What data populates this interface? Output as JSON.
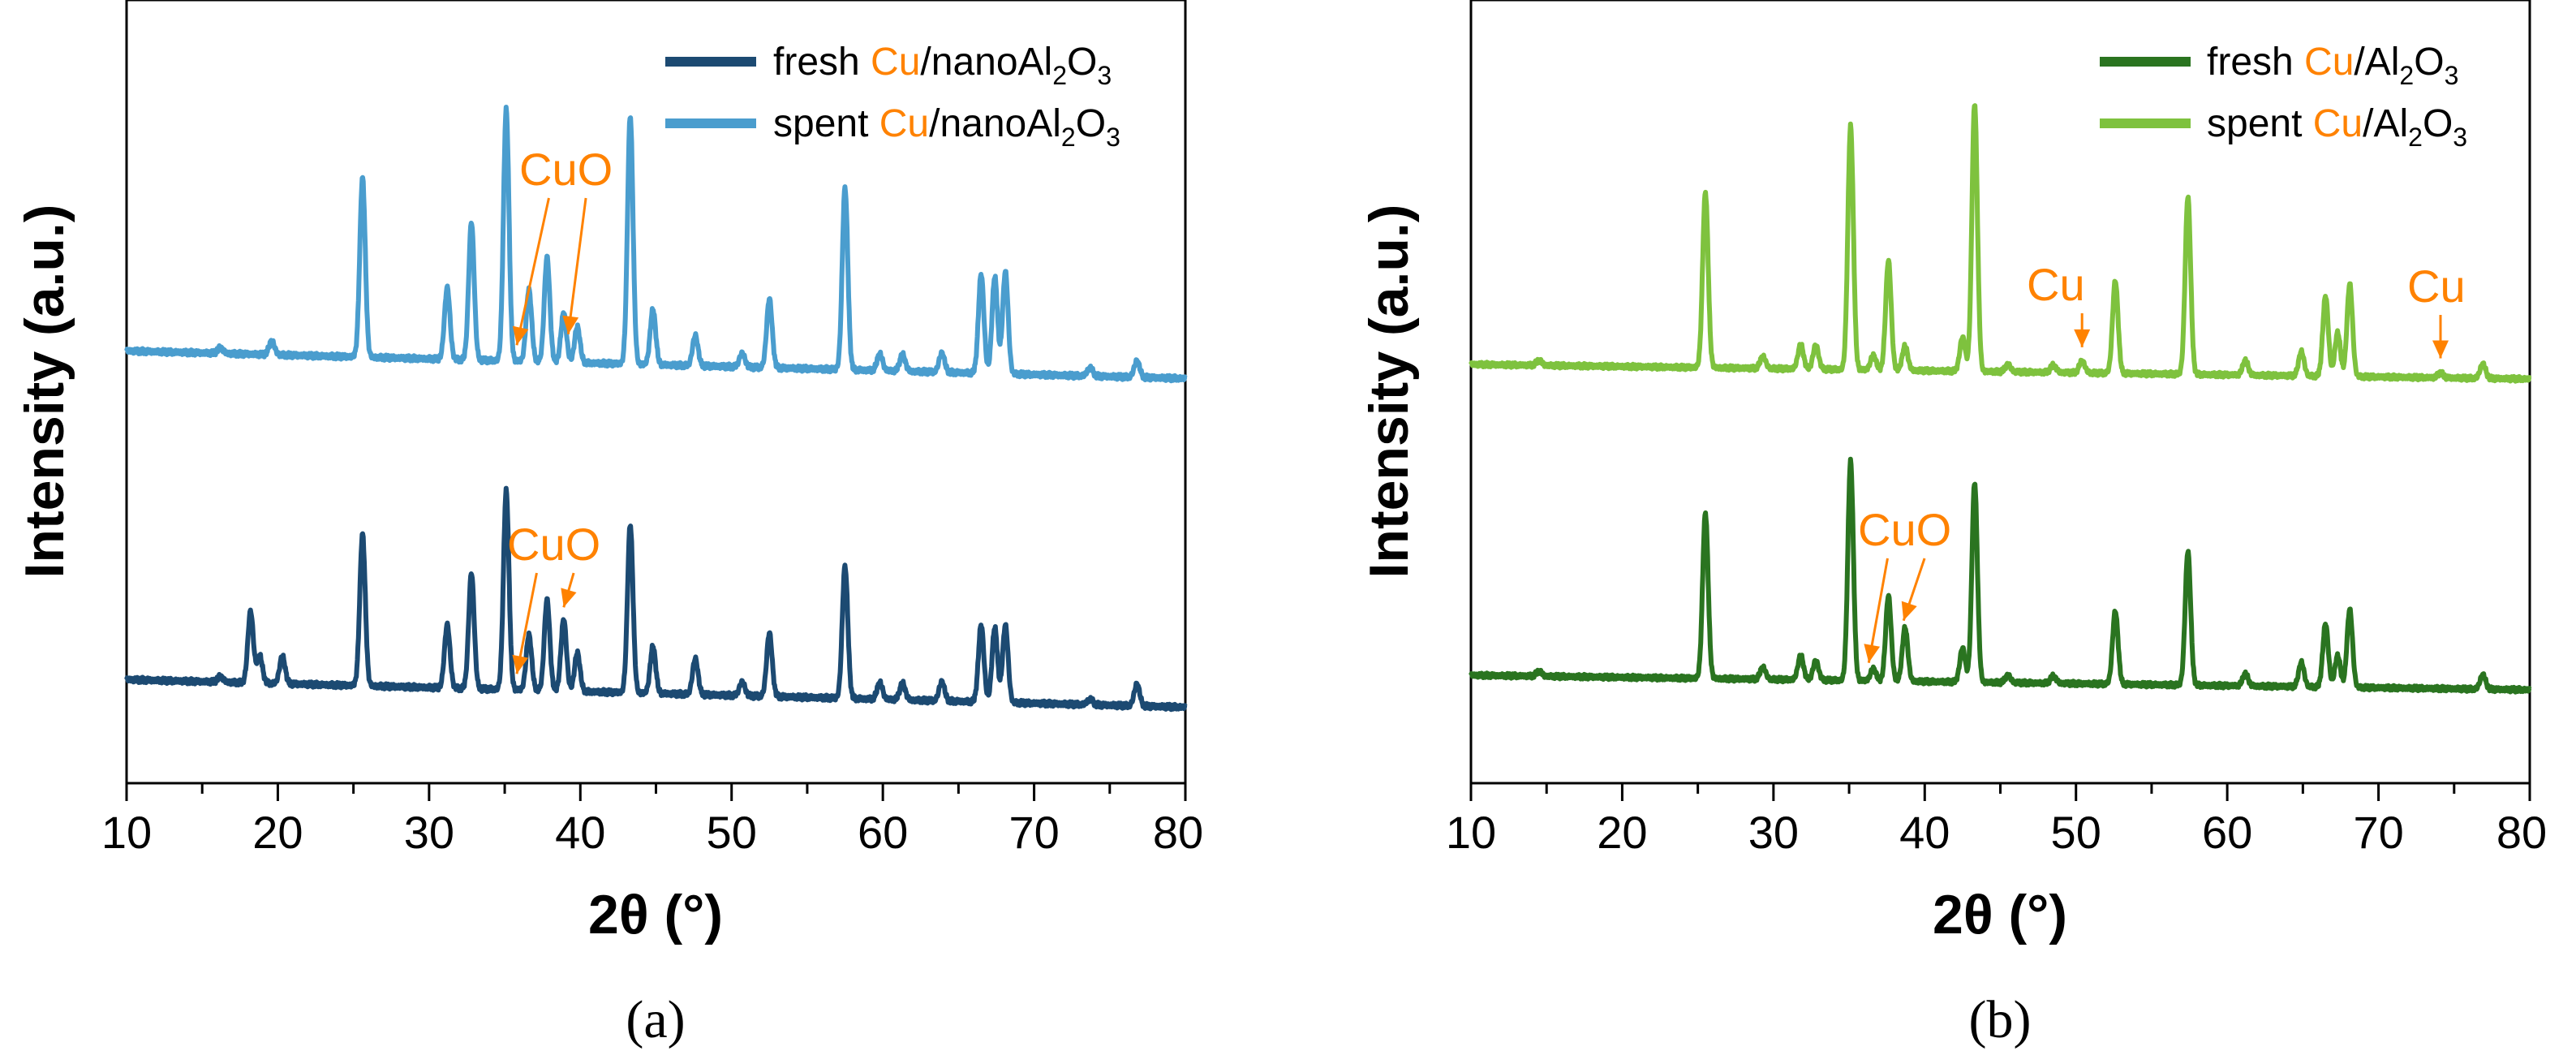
{
  "colors": {
    "a_fresh": "#1c4a72",
    "a_spent": "#4a9dce",
    "b_fresh": "#2a7420",
    "b_spent": "#7ec23e",
    "cu_highlight": "#ff8200",
    "annotation": "#ff8200"
  },
  "chart_data": [
    {
      "panel": "(a)",
      "type": "line",
      "title": "",
      "xlabel": "2θ (°)",
      "ylabel": "Intensity (a.u.)",
      "xlim": [
        10,
        80
      ],
      "xticks": [
        "10",
        "20",
        "30",
        "40",
        "50",
        "60",
        "70",
        "80"
      ],
      "y_ticks_shown": false,
      "legend_position": "top-right",
      "series": [
        {
          "name": "fresh Cu/nanoAl2O3",
          "legend": {
            "prefix": "fresh ",
            "cu": "Cu",
            "suffix": "/nanoAl",
            "sub1": "2",
            "mid": "O",
            "sub2": "3"
          },
          "color_key": "a_fresh",
          "baseline_start": 0.14,
          "baseline_end": 0.04,
          "offset": 0.0,
          "peaks": [
            [
              16.2,
              0.02
            ],
            [
              18.2,
              0.26
            ],
            [
              18.8,
              0.1
            ],
            [
              20.3,
              0.1
            ],
            [
              25.6,
              0.55
            ],
            [
              31.2,
              0.23
            ],
            [
              32.8,
              0.42
            ],
            [
              35.1,
              0.72
            ],
            [
              36.6,
              0.2
            ],
            [
              37.8,
              0.33
            ],
            [
              38.9,
              0.26
            ],
            [
              39.8,
              0.14
            ],
            [
              43.3,
              0.61
            ],
            [
              44.8,
              0.17
            ],
            [
              47.6,
              0.13
            ],
            [
              50.7,
              0.05
            ],
            [
              52.5,
              0.23
            ],
            [
              57.5,
              0.48
            ],
            [
              59.8,
              0.06
            ],
            [
              61.3,
              0.06
            ],
            [
              63.9,
              0.07
            ],
            [
              66.5,
              0.28
            ],
            [
              67.4,
              0.27
            ],
            [
              68.1,
              0.28
            ],
            [
              73.7,
              0.02
            ],
            [
              76.8,
              0.08
            ]
          ]
        },
        {
          "name": "spent Cu/nanoAl2O3",
          "legend": {
            "prefix": "spent ",
            "cu": "Cu",
            "suffix": "/nanoAl",
            "sub1": "2",
            "mid": "O",
            "sub2": "3"
          },
          "color_key": "a_spent",
          "baseline_start": 0.14,
          "baseline_end": 0.04,
          "offset": 1.0,
          "peaks": [
            [
              16.2,
              0.02
            ],
            [
              19.6,
              0.05
            ],
            [
              25.6,
              0.65
            ],
            [
              31.2,
              0.26
            ],
            [
              32.8,
              0.5
            ],
            [
              35.1,
              0.91
            ],
            [
              36.6,
              0.26
            ],
            [
              37.8,
              0.38
            ],
            [
              38.9,
              0.18
            ],
            [
              39.8,
              0.13
            ],
            [
              43.3,
              0.9
            ],
            [
              44.8,
              0.2
            ],
            [
              47.6,
              0.11
            ],
            [
              50.7,
              0.05
            ],
            [
              52.5,
              0.25
            ],
            [
              57.5,
              0.66
            ],
            [
              59.8,
              0.06
            ],
            [
              61.3,
              0.06
            ],
            [
              63.9,
              0.07
            ],
            [
              66.5,
              0.36
            ],
            [
              67.4,
              0.35
            ],
            [
              68.1,
              0.37
            ],
            [
              73.7,
              0.03
            ],
            [
              76.8,
              0.06
            ]
          ]
        }
      ],
      "annotations": [
        {
          "text": "CuO",
          "series": 1,
          "targets": [
            35.8,
            39.2
          ]
        },
        {
          "text": "CuO",
          "series": 0,
          "targets": [
            35.8,
            38.9
          ]
        }
      ]
    },
    {
      "panel": "(b)",
      "type": "line",
      "title": "",
      "xlabel": "2θ (°)",
      "ylabel": "Intensity (a.u.)",
      "xlim": [
        10,
        80
      ],
      "xticks": [
        "10",
        "20",
        "30",
        "40",
        "50",
        "60",
        "70",
        "80"
      ],
      "y_ticks_shown": false,
      "legend_position": "top-right",
      "series": [
        {
          "name": "fresh Cu/Al2O3",
          "legend": {
            "prefix": "fresh ",
            "cu": "Cu",
            "suffix": "/Al",
            "sub1": "2",
            "mid": "O",
            "sub2": "3"
          },
          "color_key": "b_fresh",
          "baseline_start": 0.12,
          "baseline_end": 0.06,
          "offset": 0.0,
          "peaks": [
            [
              14.5,
              0.02
            ],
            [
              25.5,
              0.68
            ],
            [
              29.3,
              0.05
            ],
            [
              31.8,
              0.1
            ],
            [
              32.8,
              0.08
            ],
            [
              35.1,
              0.9
            ],
            [
              36.6,
              0.05
            ],
            [
              37.6,
              0.35
            ],
            [
              38.7,
              0.22
            ],
            [
              42.5,
              0.14
            ],
            [
              43.3,
              0.82
            ],
            [
              45.5,
              0.03
            ],
            [
              48.5,
              0.03
            ],
            [
              52.6,
              0.3
            ],
            [
              57.4,
              0.55
            ],
            [
              61.2,
              0.05
            ],
            [
              64.9,
              0.1
            ],
            [
              66.5,
              0.26
            ],
            [
              67.3,
              0.13
            ],
            [
              68.1,
              0.32
            ],
            [
              76.9,
              0.06
            ]
          ]
        },
        {
          "name": "spent Cu/Al2O3",
          "legend": {
            "prefix": "spent ",
            "cu": "Cu",
            "suffix": "/Al",
            "sub1": "2",
            "mid": "O",
            "sub2": "3"
          },
          "color_key": "b_spent",
          "baseline_start": 0.12,
          "baseline_end": 0.06,
          "offset": 1.0,
          "peaks": [
            [
              14.5,
              0.02
            ],
            [
              25.5,
              0.72
            ],
            [
              29.3,
              0.05
            ],
            [
              31.8,
              0.1
            ],
            [
              32.8,
              0.1
            ],
            [
              35.1,
              1.0
            ],
            [
              36.6,
              0.06
            ],
            [
              37.6,
              0.45
            ],
            [
              38.7,
              0.1
            ],
            [
              42.5,
              0.14
            ],
            [
              43.3,
              1.1
            ],
            [
              45.5,
              0.03
            ],
            [
              48.5,
              0.03
            ],
            [
              50.4,
              0.05
            ],
            [
              52.6,
              0.38
            ],
            [
              57.4,
              0.73
            ],
            [
              61.2,
              0.06
            ],
            [
              64.9,
              0.1
            ],
            [
              66.5,
              0.33
            ],
            [
              67.3,
              0.18
            ],
            [
              68.1,
              0.38
            ],
            [
              74.1,
              0.02
            ],
            [
              76.9,
              0.06
            ]
          ]
        }
      ],
      "annotations": [
        {
          "text": "Cu",
          "series": 1,
          "targets": [
            50.4
          ]
        },
        {
          "text": "Cu",
          "series": 1,
          "targets": [
            74.1
          ]
        },
        {
          "text": "CuO",
          "series": 0,
          "targets": [
            36.3,
            38.6
          ]
        }
      ]
    }
  ]
}
